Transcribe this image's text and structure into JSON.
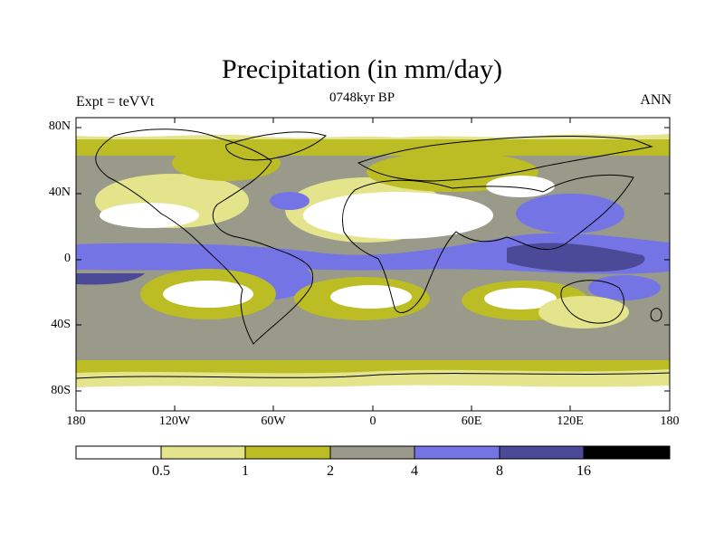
{
  "title": "Precipitation (in mm/day)",
  "experiment_label": "Expt = teVVt",
  "period_label": "0748kyr BP",
  "season_label": "ANN",
  "lat_ticks": [
    "80N",
    "40N",
    "0",
    "40S",
    "80S"
  ],
  "lon_ticks": [
    "180",
    "120W",
    "60W",
    "0",
    "60E",
    "120E",
    "180"
  ],
  "colorbar": {
    "labels": [
      "0.5",
      "1",
      "2",
      "4",
      "8",
      "16"
    ],
    "colors": [
      "#ffffff",
      "#e4e48c",
      "#bcbc24",
      "#9a9a8a",
      "#7474e4",
      "#4a4a98",
      "#000000"
    ]
  },
  "chart_data": {
    "type": "heatmap",
    "title": "Precipitation (in mm/day)",
    "units": "mm/day",
    "levels": [
      0.5,
      1,
      2,
      4,
      8,
      16
    ],
    "xlim": [
      -180,
      180
    ],
    "ylim": [
      -90,
      90
    ],
    "projection": "cylindrical-equidistant"
  }
}
